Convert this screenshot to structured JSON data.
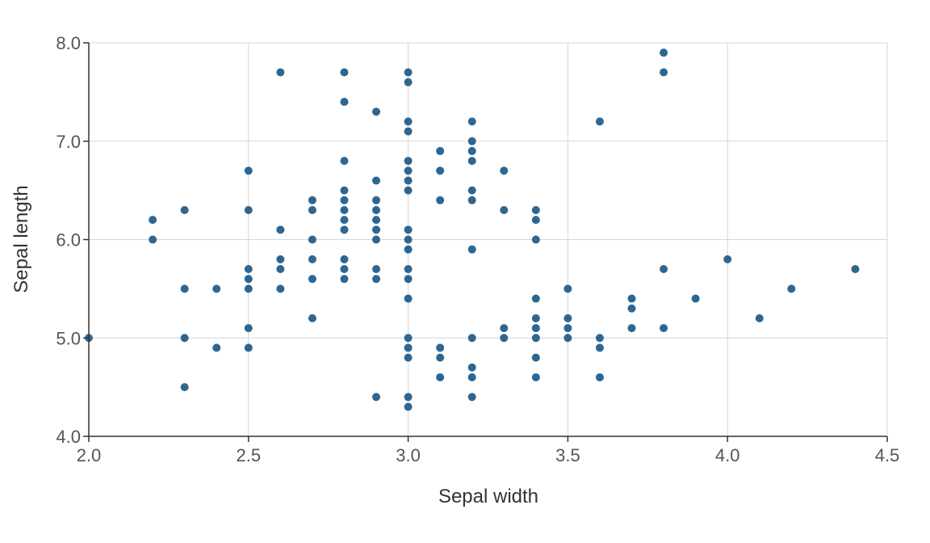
{
  "chart_data": {
    "type": "scatter",
    "title": "",
    "xlabel": "Sepal width",
    "ylabel": "Sepal length",
    "xlim": [
      2.0,
      4.5
    ],
    "ylim": [
      4.0,
      8.0
    ],
    "x_ticks": [
      "2.0",
      "2.5",
      "3.0",
      "3.5",
      "4.0",
      "4.5"
    ],
    "y_ticks": [
      "4.0",
      "5.0",
      "6.0",
      "7.0",
      "8.0"
    ],
    "grid": true,
    "legend": "none",
    "marker_color": "#2f6690",
    "series": [
      {
        "points": [
          [
            2.0,
            5.0
          ],
          [
            2.2,
            6.0
          ],
          [
            2.2,
            6.2
          ],
          [
            2.3,
            4.5
          ],
          [
            2.3,
            5.0
          ],
          [
            2.3,
            5.5
          ],
          [
            2.3,
            6.3
          ],
          [
            2.4,
            4.9
          ],
          [
            2.4,
            5.5
          ],
          [
            2.5,
            4.9
          ],
          [
            2.5,
            5.1
          ],
          [
            2.5,
            5.5
          ],
          [
            2.5,
            5.6
          ],
          [
            2.5,
            5.7
          ],
          [
            2.5,
            6.3
          ],
          [
            2.5,
            6.7
          ],
          [
            2.6,
            5.5
          ],
          [
            2.6,
            5.7
          ],
          [
            2.6,
            5.8
          ],
          [
            2.6,
            6.1
          ],
          [
            2.6,
            7.7
          ],
          [
            2.7,
            5.2
          ],
          [
            2.7,
            5.6
          ],
          [
            2.7,
            5.8
          ],
          [
            2.7,
            6.0
          ],
          [
            2.7,
            6.3
          ],
          [
            2.7,
            6.4
          ],
          [
            2.8,
            5.6
          ],
          [
            2.8,
            5.7
          ],
          [
            2.8,
            5.8
          ],
          [
            2.8,
            6.1
          ],
          [
            2.8,
            6.2
          ],
          [
            2.8,
            6.3
          ],
          [
            2.8,
            6.4
          ],
          [
            2.8,
            6.5
          ],
          [
            2.8,
            6.8
          ],
          [
            2.8,
            7.4
          ],
          [
            2.8,
            7.7
          ],
          [
            2.9,
            4.4
          ],
          [
            2.9,
            5.6
          ],
          [
            2.9,
            5.7
          ],
          [
            2.9,
            6.0
          ],
          [
            2.9,
            6.1
          ],
          [
            2.9,
            6.2
          ],
          [
            2.9,
            6.3
          ],
          [
            2.9,
            6.4
          ],
          [
            2.9,
            6.6
          ],
          [
            2.9,
            7.3
          ],
          [
            3.0,
            4.3
          ],
          [
            3.0,
            4.4
          ],
          [
            3.0,
            4.8
          ],
          [
            3.0,
            4.9
          ],
          [
            3.0,
            5.0
          ],
          [
            3.0,
            5.4
          ],
          [
            3.0,
            5.6
          ],
          [
            3.0,
            5.7
          ],
          [
            3.0,
            5.9
          ],
          [
            3.0,
            6.0
          ],
          [
            3.0,
            6.1
          ],
          [
            3.0,
            6.5
          ],
          [
            3.0,
            6.6
          ],
          [
            3.0,
            6.7
          ],
          [
            3.0,
            6.8
          ],
          [
            3.0,
            7.1
          ],
          [
            3.0,
            7.2
          ],
          [
            3.0,
            7.6
          ],
          [
            3.0,
            7.7
          ],
          [
            3.1,
            4.6
          ],
          [
            3.1,
            4.8
          ],
          [
            3.1,
            4.9
          ],
          [
            3.1,
            6.4
          ],
          [
            3.1,
            6.7
          ],
          [
            3.1,
            6.9
          ],
          [
            3.2,
            4.4
          ],
          [
            3.2,
            4.6
          ],
          [
            3.2,
            4.7
          ],
          [
            3.2,
            5.0
          ],
          [
            3.2,
            5.9
          ],
          [
            3.2,
            6.4
          ],
          [
            3.2,
            6.5
          ],
          [
            3.2,
            6.8
          ],
          [
            3.2,
            6.9
          ],
          [
            3.2,
            7.0
          ],
          [
            3.2,
            7.2
          ],
          [
            3.3,
            5.0
          ],
          [
            3.3,
            5.1
          ],
          [
            3.3,
            6.3
          ],
          [
            3.3,
            6.7
          ],
          [
            3.4,
            4.6
          ],
          [
            3.4,
            4.8
          ],
          [
            3.4,
            5.0
          ],
          [
            3.4,
            5.1
          ],
          [
            3.4,
            5.2
          ],
          [
            3.4,
            5.4
          ],
          [
            3.4,
            6.0
          ],
          [
            3.4,
            6.2
          ],
          [
            3.4,
            6.3
          ],
          [
            3.5,
            5.0
          ],
          [
            3.5,
            5.1
          ],
          [
            3.5,
            5.2
          ],
          [
            3.5,
            5.5
          ],
          [
            3.6,
            4.6
          ],
          [
            3.6,
            4.9
          ],
          [
            3.6,
            5.0
          ],
          [
            3.6,
            7.2
          ],
          [
            3.7,
            5.1
          ],
          [
            3.7,
            5.3
          ],
          [
            3.7,
            5.4
          ],
          [
            3.8,
            5.1
          ],
          [
            3.8,
            5.7
          ],
          [
            3.8,
            7.7
          ],
          [
            3.8,
            7.9
          ],
          [
            3.9,
            5.4
          ],
          [
            4.0,
            5.8
          ],
          [
            4.1,
            5.2
          ],
          [
            4.2,
            5.5
          ],
          [
            4.4,
            5.7
          ]
        ]
      }
    ]
  }
}
